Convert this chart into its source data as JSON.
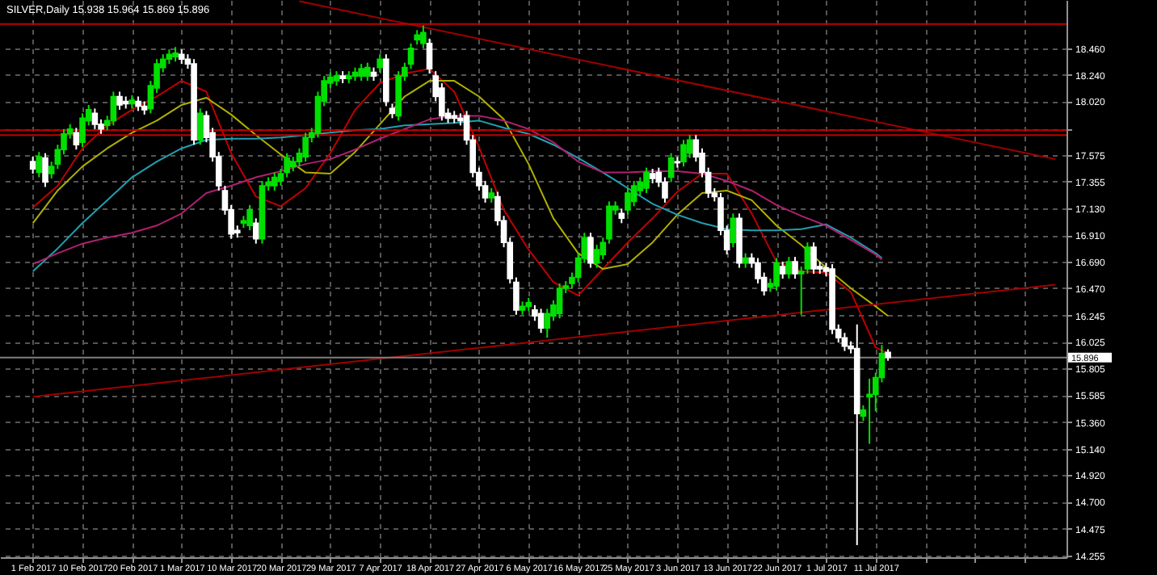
{
  "chart_data": {
    "type": "candlestick",
    "title": "SILVER,Daily  15.938 15.964 15.869 15.896",
    "categories": [
      "1 Feb 2017",
      null,
      null,
      null,
      null,
      null,
      null,
      null,
      "10 Feb 2017",
      null,
      null,
      null,
      null,
      null,
      null,
      null,
      "20 Feb 2017",
      null,
      null,
      null,
      null,
      null,
      null,
      null,
      "1 Mar 2017",
      null,
      null,
      null,
      null,
      null,
      null,
      null,
      "10 Mar 2017",
      null,
      null,
      null,
      null,
      null,
      null,
      null,
      "20 Mar 2017",
      null,
      null,
      null,
      null,
      null,
      null,
      null,
      "29 Mar 2017",
      null,
      null,
      null,
      null,
      null,
      null,
      null,
      "7 Apr 2017",
      null,
      null,
      null,
      null,
      null,
      null,
      null,
      "18 Apr 2017",
      null,
      null,
      null,
      null,
      null,
      null,
      null,
      "27 Apr 2017",
      null,
      null,
      null,
      null,
      null,
      null,
      null,
      "6 May 2017",
      null,
      null,
      null,
      null,
      null,
      null,
      null,
      "16 May 2017",
      null,
      null,
      null,
      null,
      null,
      null,
      null,
      "25 May 2017",
      null,
      null,
      null,
      null,
      null,
      null,
      null,
      "3 Jun 2017",
      null,
      null,
      null,
      null,
      null,
      null,
      null,
      "13 Jun 2017",
      null,
      null,
      null,
      null,
      null,
      null,
      null,
      "22 Jun 2017",
      null,
      null,
      null,
      null,
      null,
      null,
      null,
      "1 Jul 2017",
      null,
      null,
      null,
      null,
      null,
      null,
      null,
      "11 Jul 2017",
      null,
      null,
      null,
      null,
      null,
      null,
      null,
      null,
      null,
      null,
      null,
      null,
      null,
      null,
      null,
      null,
      null,
      null,
      null,
      null,
      null,
      null,
      null,
      null,
      null,
      null,
      null,
      null,
      null
    ],
    "ohlc": [
      [
        17.52,
        17.56,
        17.42,
        17.46
      ],
      [
        17.43,
        17.6,
        17.39,
        17.56
      ],
      [
        17.55,
        17.59,
        17.31,
        17.35
      ],
      [
        17.42,
        17.52,
        17.38,
        17.48
      ],
      [
        17.5,
        17.66,
        17.46,
        17.62
      ],
      [
        17.62,
        17.79,
        17.58,
        17.75
      ],
      [
        17.75,
        17.83,
        17.71,
        17.79
      ],
      [
        17.76,
        17.8,
        17.62,
        17.66
      ],
      [
        17.68,
        17.92,
        17.64,
        17.88
      ],
      [
        17.86,
        17.99,
        17.82,
        17.95
      ],
      [
        17.92,
        17.96,
        17.79,
        17.83
      ],
      [
        17.83,
        17.87,
        17.75,
        17.79
      ],
      [
        17.82,
        17.9,
        17.78,
        17.86
      ],
      [
        17.86,
        18.1,
        17.82,
        18.06
      ],
      [
        18.06,
        18.1,
        17.95,
        17.99
      ],
      [
        18.02,
        18.06,
        17.96,
        18.0
      ],
      [
        18.0,
        18.07,
        17.96,
        18.03
      ],
      [
        18.02,
        18.06,
        17.94,
        17.98
      ],
      [
        17.98,
        18.02,
        17.91,
        17.95
      ],
      [
        17.96,
        18.19,
        17.92,
        18.15
      ],
      [
        18.13,
        18.37,
        18.09,
        18.33
      ],
      [
        18.3,
        18.41,
        18.26,
        18.37
      ],
      [
        18.37,
        18.45,
        18.33,
        18.41
      ],
      [
        18.39,
        18.47,
        18.35,
        18.42
      ],
      [
        18.41,
        18.45,
        18.33,
        18.37
      ],
      [
        18.37,
        18.41,
        18.29,
        18.33
      ],
      [
        18.33,
        18.37,
        17.66,
        17.7
      ],
      [
        17.7,
        17.96,
        17.66,
        17.92
      ],
      [
        17.9,
        17.94,
        17.68,
        17.72
      ],
      [
        17.76,
        17.8,
        17.52,
        17.56
      ],
      [
        17.56,
        17.6,
        17.28,
        17.32
      ],
      [
        17.28,
        17.32,
        17.08,
        17.12
      ],
      [
        17.12,
        17.16,
        16.88,
        16.92
      ],
      [
        16.95,
        16.99,
        16.89,
        16.93
      ],
      [
        17.01,
        17.07,
        16.97,
        17.03
      ],
      [
        16.99,
        17.16,
        16.95,
        17.12
      ],
      [
        17.01,
        17.05,
        16.84,
        16.88
      ],
      [
        16.88,
        17.36,
        16.84,
        17.32
      ],
      [
        17.32,
        17.39,
        17.28,
        17.35
      ],
      [
        17.32,
        17.43,
        17.28,
        17.39
      ],
      [
        17.36,
        17.46,
        17.32,
        17.42
      ],
      [
        17.43,
        17.59,
        17.39,
        17.55
      ],
      [
        17.48,
        17.56,
        17.44,
        17.52
      ],
      [
        17.52,
        17.63,
        17.48,
        17.59
      ],
      [
        17.56,
        17.76,
        17.52,
        17.72
      ],
      [
        17.72,
        17.8,
        17.68,
        17.76
      ],
      [
        17.76,
        18.1,
        17.72,
        18.06
      ],
      [
        18.02,
        18.23,
        17.98,
        18.19
      ],
      [
        18.17,
        18.26,
        18.13,
        18.22
      ],
      [
        18.19,
        18.27,
        18.15,
        18.23
      ],
      [
        18.23,
        18.27,
        18.17,
        18.21
      ],
      [
        18.21,
        18.27,
        18.17,
        18.23
      ],
      [
        18.23,
        18.3,
        18.19,
        18.26
      ],
      [
        18.23,
        18.33,
        18.19,
        18.29
      ],
      [
        18.23,
        18.34,
        18.19,
        18.3
      ],
      [
        18.26,
        18.3,
        18.19,
        18.23
      ],
      [
        18.3,
        18.41,
        18.26,
        18.37
      ],
      [
        18.37,
        18.41,
        17.98,
        18.02
      ],
      [
        17.96,
        18.0,
        17.88,
        17.92
      ],
      [
        17.9,
        18.27,
        17.86,
        18.23
      ],
      [
        18.23,
        18.34,
        18.19,
        18.3
      ],
      [
        18.33,
        18.5,
        18.29,
        18.46
      ],
      [
        18.53,
        18.61,
        18.49,
        18.57
      ],
      [
        18.5,
        18.65,
        18.46,
        18.59
      ],
      [
        18.5,
        18.54,
        18.25,
        18.29
      ],
      [
        18.23,
        18.27,
        18.02,
        18.06
      ],
      [
        18.13,
        18.17,
        17.86,
        17.9
      ],
      [
        17.92,
        17.96,
        17.84,
        17.88
      ],
      [
        17.9,
        17.94,
        17.84,
        17.88
      ],
      [
        17.88,
        17.92,
        17.82,
        17.86
      ],
      [
        17.9,
        17.94,
        17.66,
        17.7
      ],
      [
        17.7,
        17.74,
        17.39,
        17.43
      ],
      [
        17.43,
        17.47,
        17.28,
        17.32
      ],
      [
        17.32,
        17.36,
        17.18,
        17.22
      ],
      [
        17.22,
        17.3,
        17.18,
        17.26
      ],
      [
        17.23,
        17.27,
        16.99,
        17.03
      ],
      [
        17.03,
        17.07,
        16.81,
        16.85
      ],
      [
        16.85,
        16.89,
        16.51,
        16.55
      ],
      [
        16.52,
        16.56,
        16.25,
        16.29
      ],
      [
        16.29,
        16.36,
        16.25,
        16.32
      ],
      [
        16.32,
        16.39,
        16.28,
        16.35
      ],
      [
        16.29,
        16.33,
        16.2,
        16.24
      ],
      [
        16.26,
        16.3,
        16.1,
        16.14
      ],
      [
        16.14,
        16.3,
        16.06,
        16.26
      ],
      [
        16.24,
        16.37,
        16.2,
        16.33
      ],
      [
        16.26,
        16.51,
        16.22,
        16.47
      ],
      [
        16.47,
        16.53,
        16.43,
        16.49
      ],
      [
        16.51,
        16.6,
        16.47,
        16.56
      ],
      [
        16.56,
        16.76,
        16.52,
        16.72
      ],
      [
        16.72,
        16.93,
        16.68,
        16.89
      ],
      [
        16.89,
        16.93,
        16.64,
        16.68
      ],
      [
        16.68,
        16.83,
        16.64,
        16.79
      ],
      [
        16.75,
        16.89,
        16.71,
        16.85
      ],
      [
        16.88,
        17.19,
        16.84,
        17.15
      ],
      [
        17.12,
        17.19,
        17.08,
        17.15
      ],
      [
        17.09,
        17.13,
        17.01,
        17.05
      ],
      [
        17.12,
        17.3,
        17.08,
        17.26
      ],
      [
        17.19,
        17.36,
        17.15,
        17.32
      ],
      [
        17.28,
        17.39,
        17.24,
        17.35
      ],
      [
        17.3,
        17.47,
        17.26,
        17.43
      ],
      [
        17.42,
        17.46,
        17.34,
        17.38
      ],
      [
        17.43,
        17.47,
        17.31,
        17.35
      ],
      [
        17.35,
        17.39,
        17.18,
        17.22
      ],
      [
        17.39,
        17.59,
        17.35,
        17.55
      ],
      [
        17.52,
        17.56,
        17.47,
        17.51
      ],
      [
        17.52,
        17.7,
        17.48,
        17.66
      ],
      [
        17.59,
        17.74,
        17.55,
        17.7
      ],
      [
        17.7,
        17.74,
        17.52,
        17.56
      ],
      [
        17.59,
        17.63,
        17.39,
        17.43
      ],
      [
        17.43,
        17.47,
        17.22,
        17.26
      ],
      [
        17.26,
        17.3,
        17.19,
        17.23
      ],
      [
        17.22,
        17.26,
        16.91,
        16.95
      ],
      [
        16.95,
        16.99,
        16.75,
        16.79
      ],
      [
        16.85,
        17.09,
        16.81,
        17.05
      ],
      [
        17.05,
        17.09,
        16.64,
        16.68
      ],
      [
        16.68,
        16.76,
        16.64,
        16.72
      ],
      [
        16.72,
        16.76,
        16.64,
        16.68
      ],
      [
        16.68,
        16.72,
        16.51,
        16.55
      ],
      [
        16.56,
        16.6,
        16.41,
        16.45
      ],
      [
        16.48,
        16.55,
        16.44,
        16.51
      ],
      [
        16.49,
        16.72,
        16.45,
        16.68
      ],
      [
        16.65,
        16.69,
        16.55,
        16.59
      ],
      [
        16.59,
        16.73,
        16.55,
        16.69
      ],
      [
        16.69,
        16.73,
        16.55,
        16.59
      ],
      [
        16.59,
        16.65,
        16.25,
        16.61
      ],
      [
        16.63,
        16.85,
        16.59,
        16.81
      ],
      [
        16.81,
        16.85,
        16.59,
        16.63
      ],
      [
        16.65,
        16.69,
        16.59,
        16.63
      ],
      [
        16.64,
        16.68,
        16.57,
        16.61
      ],
      [
        16.63,
        16.67,
        16.09,
        16.13
      ],
      [
        16.13,
        16.17,
        16.02,
        16.06
      ],
      [
        16.06,
        16.1,
        15.95,
        15.99
      ],
      [
        15.99,
        16.03,
        15.93,
        15.97
      ],
      [
        15.97,
        16.17,
        14.34,
        15.43
      ],
      [
        15.41,
        15.5,
        15.37,
        15.46
      ],
      [
        15.57,
        15.72,
        15.18,
        15.59
      ],
      [
        15.59,
        15.77,
        15.45,
        15.73
      ],
      [
        15.73,
        16.0,
        15.69,
        15.93
      ],
      [
        15.938,
        15.964,
        15.869,
        15.896
      ],
      null,
      null,
      null,
      null,
      null,
      null,
      null,
      null,
      null,
      null,
      null,
      null,
      null,
      null,
      null,
      null,
      null,
      null,
      null,
      null,
      null,
      null,
      null,
      null,
      null,
      null,
      null
    ],
    "colors": [
      "#ffffff",
      "#00e000",
      "#ffffff",
      "#00e000",
      "#00e000",
      "#00e000",
      "#00e000",
      "#ffffff",
      "#00e000",
      "#00e000",
      "#ffffff",
      "#ffffff",
      "#00e000",
      "#00e000",
      "#ffffff",
      "#ffffff",
      "#00e000",
      "#ffffff",
      "#ffffff",
      "#00e000",
      "#00e000",
      "#00e000",
      "#00e000",
      "#00e000",
      "#ffffff",
      "#ffffff",
      "#ffffff",
      "#00e000",
      "#ffffff",
      "#ffffff",
      "#ffffff",
      "#ffffff",
      "#ffffff",
      "#ffffff",
      "#00e000",
      "#00e000",
      "#ffffff",
      "#00e000",
      "#00e000",
      "#00e000",
      "#00e000",
      "#00e000",
      "#00e000",
      "#00e000",
      "#00e000",
      "#00e000",
      "#00e000",
      "#00e000",
      "#00e000",
      "#00e000",
      "#ffffff",
      "#00e000",
      "#00e000",
      "#00e000",
      "#00e000",
      "#ffffff",
      "#00e000",
      "#ffffff",
      "#ffffff",
      "#00e000",
      "#00e000",
      "#00e000",
      "#00e000",
      "#00e000",
      "#ffffff",
      "#ffffff",
      "#ffffff",
      "#ffffff",
      "#ffffff",
      "#ffffff",
      "#ffffff",
      "#ffffff",
      "#ffffff",
      "#ffffff",
      "#00e000",
      "#ffffff",
      "#ffffff",
      "#ffffff",
      "#ffffff",
      "#00e000",
      "#00e000",
      "#ffffff",
      "#ffffff",
      "#00e000",
      "#00e000",
      "#00e000",
      "#00e000",
      "#00e000",
      "#00e000",
      "#00e000",
      "#ffffff",
      "#00e000",
      "#00e000",
      "#00e000",
      "#00e000",
      "#ffffff",
      "#00e000",
      "#00e000",
      "#00e000",
      "#00e000",
      "#ffffff",
      "#ffffff",
      "#ffffff",
      "#00e000",
      "#ffffff",
      "#00e000",
      "#00e000",
      "#ffffff",
      "#ffffff",
      "#ffffff",
      "#ffffff",
      "#ffffff",
      "#ffffff",
      "#00e000",
      "#ffffff",
      "#00e000",
      "#ffffff",
      "#ffffff",
      "#ffffff",
      "#00e000",
      "#00e000",
      "#ffffff",
      "#00e000",
      "#ffffff",
      "#00e000",
      "#00e000",
      "#ffffff",
      "#ffffff",
      "#ffffff",
      "#ffffff",
      "#ffffff",
      "#ffffff",
      "#ffffff",
      "#ffffff",
      "#00e000",
      "#00e000",
      "#00e000",
      "#00e000",
      "#ffffff",
      null,
      null,
      null,
      null,
      null,
      null,
      null,
      null,
      null,
      null,
      null,
      null,
      null,
      null,
      null,
      null,
      null,
      null,
      null,
      null,
      null,
      null,
      null,
      null,
      null,
      null,
      null
    ],
    "series": [
      {
        "type": "line",
        "color": "#c00000",
        "values": [
          17.14,
          null,
          null,
          null,
          17.32,
          null,
          null,
          null,
          17.63,
          null,
          null,
          null,
          17.82,
          null,
          null,
          null,
          17.95,
          null,
          null,
          null,
          18.06,
          null,
          null,
          null,
          18.19,
          null,
          null,
          null,
          18.1,
          null,
          null,
          null,
          17.59,
          null,
          null,
          null,
          17.23,
          null,
          null,
          null,
          17.15,
          null,
          null,
          null,
          17.3,
          null,
          null,
          null,
          17.59,
          null,
          null,
          null,
          17.95,
          null,
          null,
          null,
          18.17,
          null,
          null,
          null,
          18.25,
          null,
          null,
          null,
          18.29,
          null,
          null,
          null,
          18.1,
          null,
          null,
          null,
          17.64,
          null,
          null,
          null,
          17.12,
          null,
          null,
          null,
          16.79,
          null,
          null,
          null,
          16.52,
          null,
          null,
          null,
          16.41,
          null,
          null,
          null,
          16.63,
          null,
          null,
          null,
          16.85,
          null,
          null,
          null,
          17.05,
          null,
          null,
          null,
          17.27,
          null,
          null,
          null,
          17.42,
          null,
          null,
          null,
          17.42,
          null,
          null,
          null,
          17.09,
          null,
          null,
          null,
          16.69,
          null,
          null,
          null,
          16.61,
          null,
          null,
          null,
          16.6,
          null,
          null,
          null,
          16.44,
          null,
          null,
          null,
          15.98,
          null,
          15.93,
          null,
          null,
          null,
          null,
          null,
          null,
          null,
          null,
          null,
          null,
          null,
          null,
          null,
          null,
          null,
          null,
          null,
          null,
          null,
          null,
          null,
          null,
          null,
          null,
          null,
          null,
          null
        ]
      },
      {
        "type": "line",
        "color": "#b0b000",
        "values": [
          17.01,
          null,
          null,
          null,
          17.28,
          null,
          null,
          null,
          17.48,
          null,
          null,
          null,
          17.63,
          null,
          null,
          null,
          17.76,
          null,
          null,
          null,
          17.86,
          null,
          null,
          null,
          17.99,
          null,
          null,
          null,
          18.05,
          null,
          null,
          null,
          17.91,
          null,
          null,
          null,
          17.74,
          null,
          null,
          null,
          17.58,
          null,
          null,
          null,
          17.43,
          null,
          null,
          null,
          17.42,
          null,
          null,
          null,
          17.6,
          null,
          null,
          null,
          17.83,
          null,
          null,
          null,
          18.06,
          null,
          null,
          null,
          18.19,
          null,
          null,
          null,
          18.19,
          null,
          null,
          null,
          18.06,
          null,
          null,
          null,
          17.87,
          null,
          null,
          null,
          17.5,
          null,
          null,
          null,
          17.05,
          null,
          null,
          null,
          16.76,
          null,
          null,
          null,
          16.63,
          null,
          null,
          null,
          16.67,
          null,
          null,
          null,
          16.85,
          null,
          null,
          null,
          17.08,
          null,
          null,
          null,
          17.26,
          null,
          null,
          null,
          17.28,
          null,
          null,
          null,
          17.2,
          null,
          null,
          null,
          16.99,
          null,
          null,
          null,
          16.83,
          null,
          null,
          null,
          16.64,
          null,
          null,
          null,
          16.47,
          null,
          null,
          null,
          16.32,
          null,
          16.24,
          null,
          null,
          null,
          null,
          null,
          null,
          null,
          null,
          null,
          null,
          null,
          null,
          null,
          null,
          null,
          null,
          null,
          null,
          null,
          null,
          null,
          null,
          null,
          null,
          null,
          null,
          null
        ]
      },
      {
        "type": "line",
        "color": "#20a0b0",
        "values": [
          16.61,
          null,
          null,
          null,
          16.8,
          null,
          null,
          null,
          17.01,
          null,
          null,
          null,
          17.2,
          null,
          null,
          null,
          17.39,
          null,
          null,
          null,
          17.52,
          null,
          null,
          null,
          17.63,
          null,
          null,
          null,
          17.7,
          null,
          null,
          null,
          17.71,
          null,
          null,
          null,
          17.71,
          null,
          null,
          null,
          17.72,
          null,
          null,
          null,
          17.74,
          null,
          null,
          null,
          17.76,
          null,
          null,
          null,
          17.78,
          null,
          null,
          null,
          17.79,
          null,
          null,
          null,
          17.82,
          null,
          null,
          null,
          17.83,
          null,
          null,
          null,
          17.84,
          null,
          null,
          null,
          17.86,
          null,
          null,
          null,
          17.8,
          null,
          null,
          null,
          17.75,
          null,
          null,
          null,
          17.66,
          null,
          null,
          null,
          17.55,
          null,
          null,
          null,
          17.43,
          null,
          null,
          null,
          17.3,
          null,
          null,
          null,
          17.17,
          null,
          null,
          null,
          17.08,
          null,
          null,
          null,
          17.01,
          null,
          null,
          null,
          16.96,
          null,
          null,
          null,
          16.95,
          null,
          null,
          null,
          16.95,
          null,
          null,
          null,
          16.96,
          null,
          null,
          null,
          17.0,
          null,
          null,
          null,
          16.89,
          null,
          null,
          null,
          16.76,
          16.72,
          null,
          null,
          null,
          null,
          null,
          null,
          null,
          null,
          null,
          null,
          null,
          null,
          null,
          null,
          null,
          null,
          null,
          null,
          null,
          null,
          null,
          null,
          null,
          null,
          null,
          null,
          null,
          null
        ]
      },
      {
        "type": "line",
        "color": "#b02070",
        "values": [
          16.67,
          null,
          null,
          null,
          16.76,
          null,
          null,
          null,
          16.84,
          null,
          null,
          null,
          16.89,
          null,
          null,
          null,
          16.93,
          null,
          null,
          null,
          16.99,
          null,
          null,
          null,
          17.09,
          null,
          null,
          null,
          17.26,
          null,
          null,
          null,
          17.32,
          null,
          null,
          null,
          17.39,
          null,
          null,
          null,
          17.44,
          null,
          null,
          null,
          17.5,
          null,
          null,
          null,
          17.54,
          null,
          null,
          null,
          17.62,
          null,
          null,
          null,
          17.71,
          null,
          null,
          null,
          17.79,
          null,
          null,
          null,
          17.87,
          null,
          null,
          null,
          17.9,
          null,
          null,
          null,
          17.9,
          null,
          null,
          null,
          17.86,
          null,
          null,
          null,
          17.79,
          null,
          null,
          null,
          17.68,
          null,
          null,
          null,
          17.52,
          null,
          null,
          null,
          17.43,
          null,
          null,
          null,
          17.43,
          null,
          null,
          null,
          17.44,
          null,
          null,
          null,
          17.44,
          null,
          null,
          null,
          17.42,
          null,
          null,
          null,
          17.36,
          null,
          null,
          null,
          17.28,
          null,
          null,
          null,
          17.16,
          null,
          null,
          null,
          17.07,
          null,
          null,
          null,
          16.99,
          null,
          null,
          null,
          16.87,
          null,
          null,
          null,
          16.75,
          16.71,
          null,
          null,
          null,
          null,
          null,
          null,
          null,
          null,
          null,
          null,
          null,
          null,
          null,
          null,
          null,
          null,
          null,
          null,
          null,
          null,
          null,
          null,
          null,
          null,
          null,
          null,
          null,
          null
        ]
      },
      {
        "type": "line",
        "color": "#a00000",
        "values": [
          null,
          null,
          null,
          null,
          null,
          null,
          null,
          null,
          null,
          null,
          null,
          null,
          null,
          null,
          null,
          null,
          null,
          null,
          null,
          null,
          null,
          null,
          null,
          null,
          null,
          null,
          null,
          null,
          null,
          null,
          null,
          null,
          null,
          null,
          null,
          null,
          null,
          null,
          null,
          null,
          null,
          null,
          null,
          18.85,
          null,
          null,
          null,
          null,
          null,
          null,
          null,
          null,
          null,
          null,
          null,
          null,
          null,
          null,
          null,
          null,
          null,
          null,
          null,
          null,
          null,
          null,
          null,
          null,
          null,
          null,
          null,
          null,
          null,
          null,
          null,
          null,
          null,
          null,
          null,
          null,
          null,
          null,
          null,
          null,
          null,
          null,
          null,
          null,
          null,
          null,
          null,
          null,
          null,
          null,
          null,
          null,
          null,
          null,
          null,
          null,
          null,
          null,
          null,
          null,
          null,
          null,
          null,
          null,
          null,
          null,
          null,
          null,
          null,
          null,
          null,
          null,
          null,
          null,
          null,
          null,
          null,
          null,
          null,
          null,
          null,
          null,
          null,
          null,
          null,
          null,
          null,
          null,
          null,
          null,
          null,
          null,
          null,
          null,
          null,
          null,
          null,
          null,
          null,
          null,
          null,
          null,
          null,
          null,
          null,
          null,
          null,
          null,
          null,
          null,
          null,
          null,
          null,
          null,
          null,
          null,
          null,
          null,
          null,
          null,
          null,
          17.54
        ]
      },
      {
        "type": "line",
        "color": "#a00000",
        "values": [
          15.57,
          null,
          null,
          null,
          null,
          null,
          null,
          null,
          null,
          null,
          null,
          null,
          null,
          null,
          null,
          null,
          null,
          null,
          null,
          null,
          null,
          null,
          null,
          null,
          null,
          null,
          null,
          null,
          null,
          null,
          null,
          null,
          null,
          null,
          null,
          null,
          null,
          null,
          null,
          null,
          null,
          null,
          null,
          null,
          null,
          null,
          null,
          null,
          null,
          null,
          null,
          null,
          null,
          null,
          null,
          null,
          null,
          null,
          null,
          null,
          null,
          null,
          null,
          null,
          null,
          null,
          null,
          null,
          null,
          null,
          null,
          null,
          null,
          null,
          null,
          null,
          null,
          null,
          null,
          null,
          null,
          null,
          null,
          null,
          null,
          null,
          null,
          null,
          null,
          null,
          null,
          null,
          null,
          null,
          null,
          null,
          null,
          null,
          null,
          null,
          null,
          null,
          null,
          null,
          null,
          null,
          null,
          null,
          null,
          null,
          null,
          null,
          null,
          null,
          null,
          null,
          null,
          null,
          null,
          null,
          null,
          null,
          null,
          null,
          null,
          null,
          null,
          null,
          null,
          null,
          null,
          null,
          null,
          null,
          null,
          null,
          null,
          null,
          null,
          null,
          null,
          null,
          null,
          null,
          null,
          null,
          null,
          null,
          null,
          null,
          null,
          null,
          null,
          null,
          null,
          null,
          null,
          null,
          null,
          null,
          null,
          null,
          null,
          null,
          null,
          16.5
        ]
      }
    ],
    "ylim": [
      14.24,
      18.86
    ],
    "yticks": [
      {
        "value": 18.46,
        "label": "18.460"
      },
      {
        "value": 18.24,
        "label": "18.240"
      },
      {
        "value": 18.02,
        "label": "18.020"
      },
      {
        "value": 17.795,
        "label": null
      },
      {
        "value": 17.575,
        "label": "17.575"
      },
      {
        "value": 17.355,
        "label": "17.355"
      },
      {
        "value": 17.13,
        "label": "17.130"
      },
      {
        "value": 16.91,
        "label": "16.910"
      },
      {
        "value": 16.69,
        "label": "16.690"
      },
      {
        "value": 16.47,
        "label": "16.470"
      },
      {
        "value": 16.245,
        "label": "16.245"
      },
      {
        "value": 16.025,
        "label": "16.025"
      },
      {
        "value": 15.805,
        "label": "15.805"
      },
      {
        "value": 15.585,
        "label": "15.585"
      },
      {
        "value": 15.36,
        "label": "15.360"
      },
      {
        "value": 15.14,
        "label": "15.140"
      },
      {
        "value": 14.92,
        "label": "14.920"
      },
      {
        "value": 14.7,
        "label": "14.700"
      },
      {
        "value": 14.475,
        "label": "14.475"
      },
      {
        "value": 14.255,
        "label": "14.255"
      }
    ],
    "grid": true,
    "ref_lines": [
      {
        "axis": "y",
        "value": 18.66,
        "color": "#c00000"
      },
      {
        "axis": "y",
        "value": 17.78,
        "color": "#c00000"
      },
      {
        "axis": "y",
        "value": 17.74,
        "color": "#c00000"
      },
      {
        "axis": "y",
        "value": 15.896,
        "label": "15.896",
        "color": "#808080"
      }
    ]
  }
}
